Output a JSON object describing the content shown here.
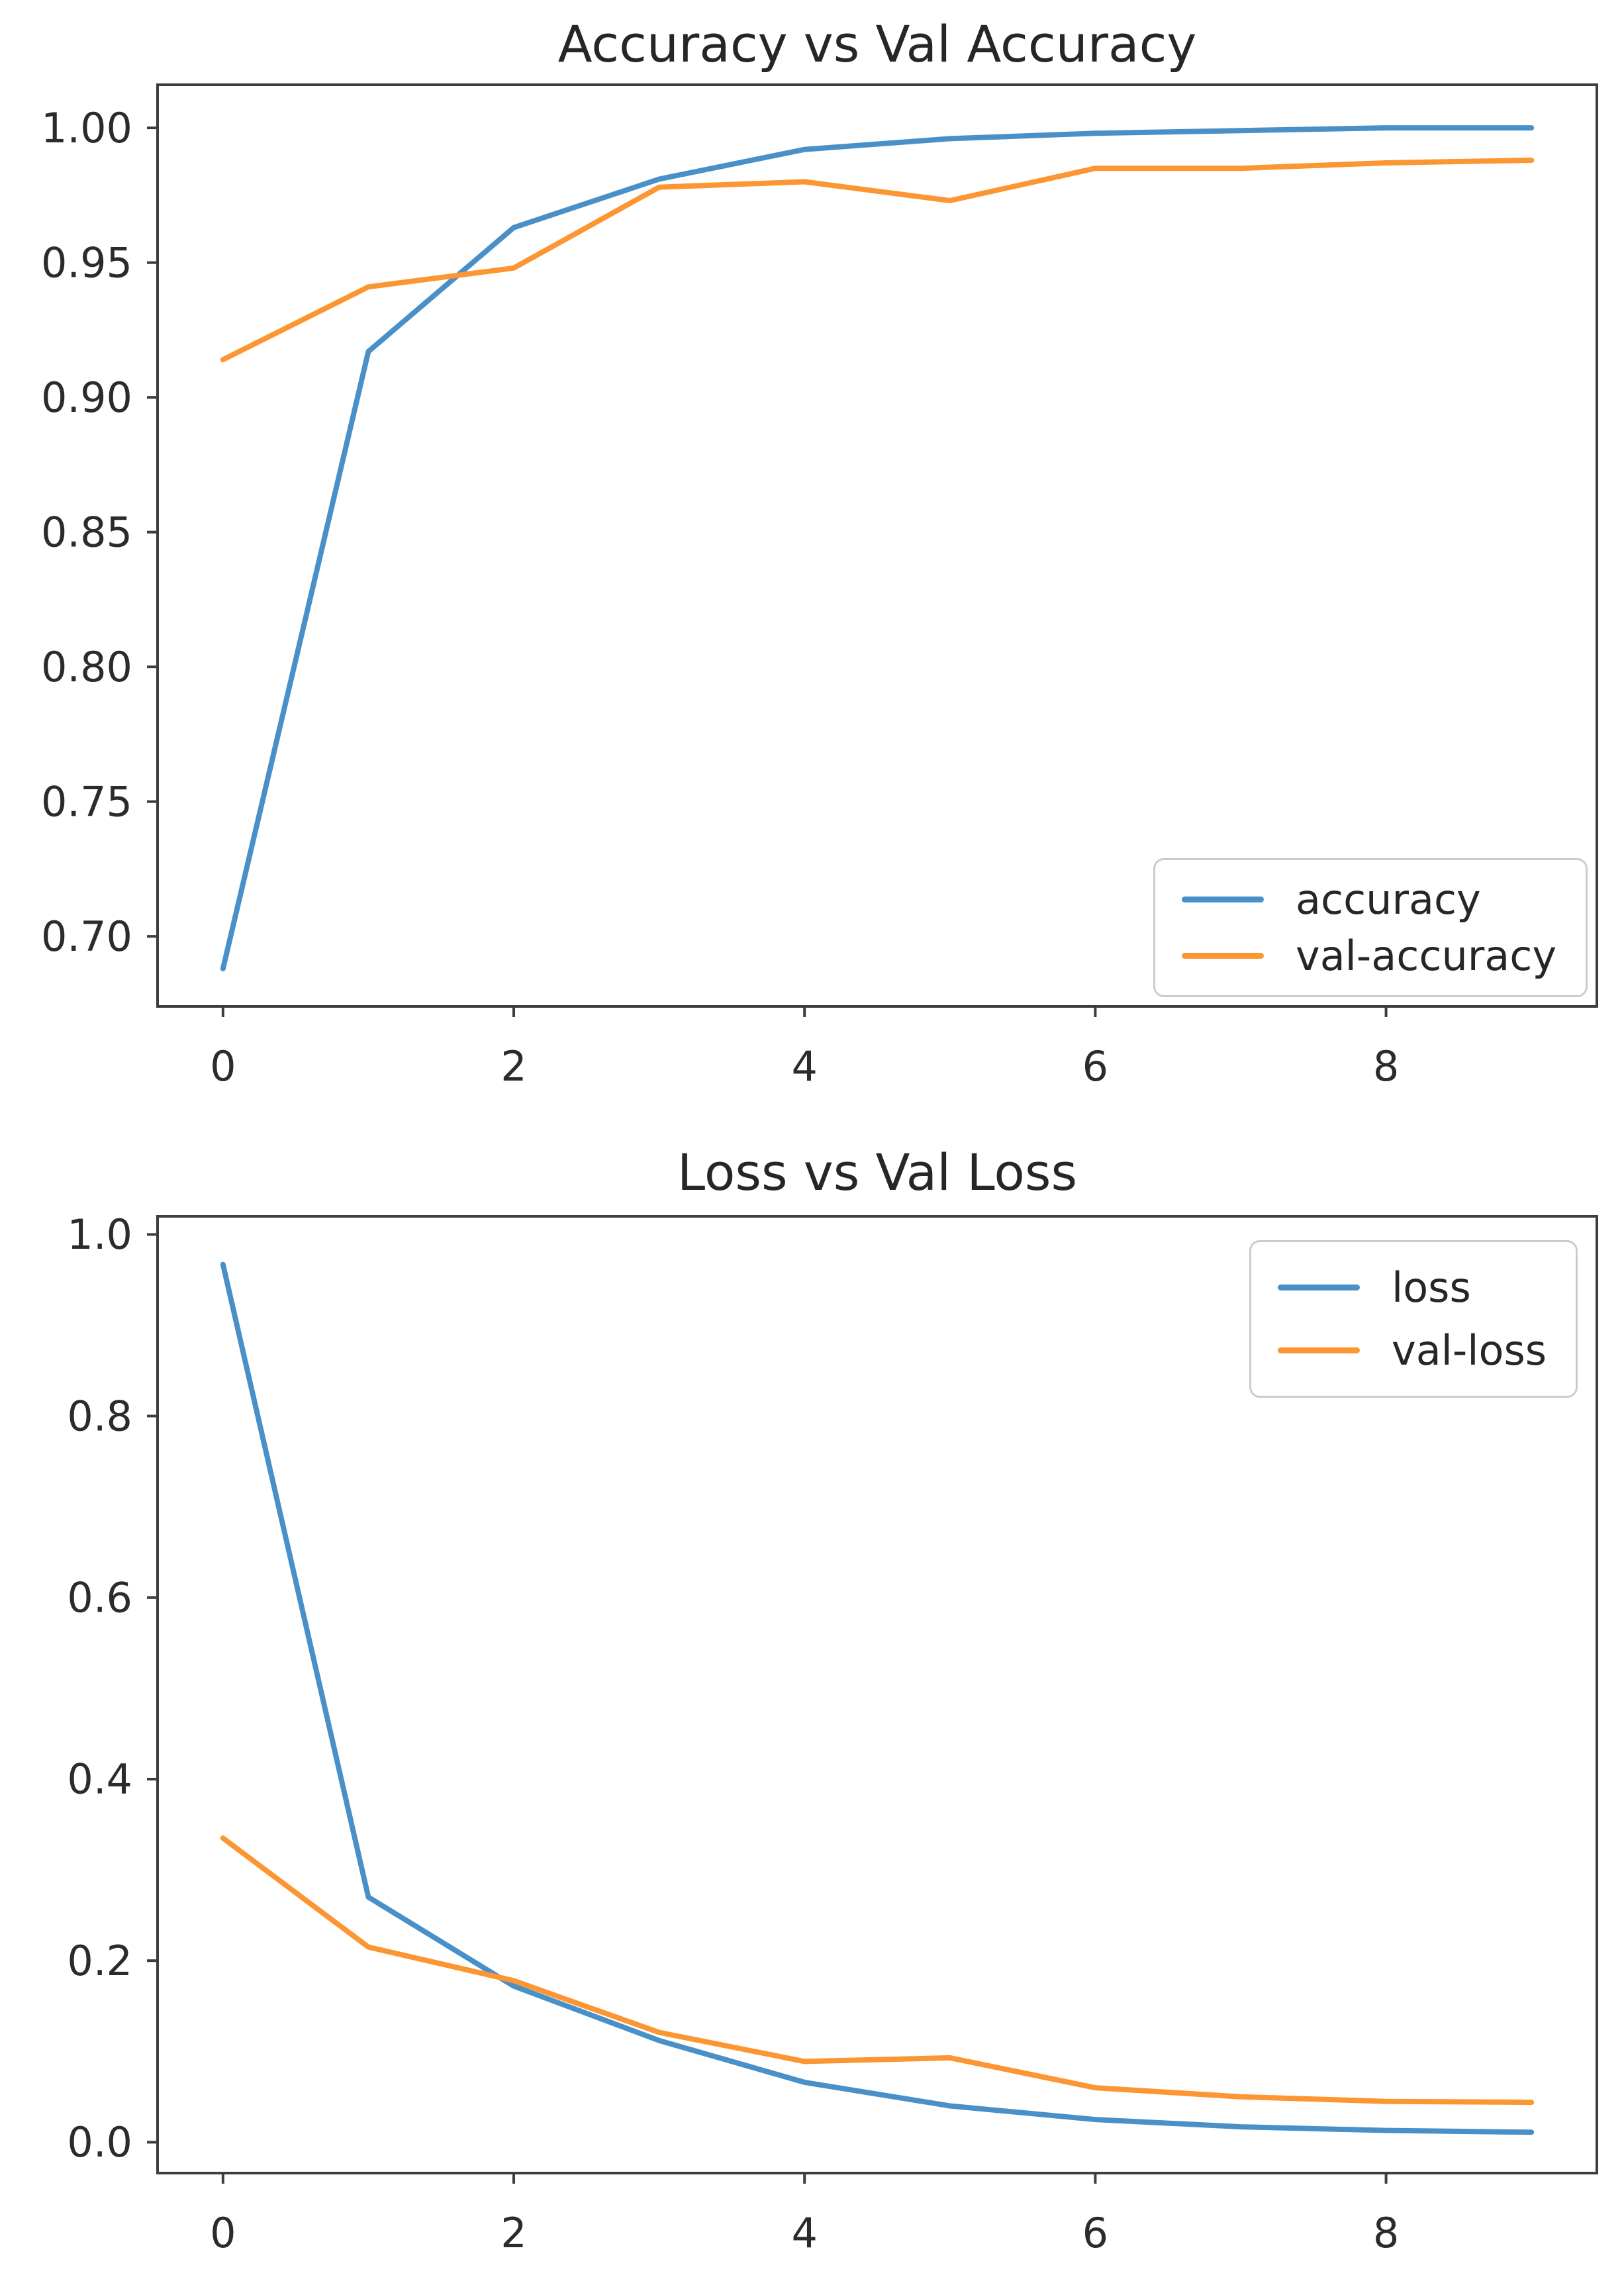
{
  "figure": {
    "background_color": "#ffffff",
    "axis_color": "#3d3d3d",
    "tick_label_color": "#2b2b2b",
    "accent_blue": "#4a90c8",
    "accent_orange": "#fb9632"
  },
  "chart_data": [
    {
      "type": "line",
      "title": "Accuracy vs Val Accuracy",
      "xlabel": "",
      "ylabel": "",
      "x": [
        0,
        1,
        2,
        3,
        4,
        5,
        6,
        7,
        8,
        9
      ],
      "series": [
        {
          "name": "accuracy",
          "color": "#4a90c8",
          "values": [
            0.688,
            0.917,
            0.963,
            0.981,
            0.992,
            0.996,
            0.998,
            0.999,
            1.0,
            1.0
          ]
        },
        {
          "name": "val-accuracy",
          "color": "#fb9632",
          "values": [
            0.914,
            0.941,
            0.948,
            0.978,
            0.98,
            0.973,
            0.985,
            0.985,
            0.987,
            0.988
          ]
        }
      ],
      "xlim": [
        -0.45,
        9.45
      ],
      "ylim": [
        0.674,
        1.016
      ],
      "xticks": {
        "values": [
          0,
          2,
          4,
          6,
          8
        ],
        "labels": [
          "0",
          "2",
          "4",
          "6",
          "8"
        ]
      },
      "yticks": {
        "values": [
          1.0,
          0.95,
          0.9,
          0.85,
          0.8,
          0.75,
          0.7
        ],
        "labels": [
          "1.00",
          "0.95",
          "0.90",
          "0.85",
          "0.80",
          "0.75",
          "0.70"
        ]
      },
      "grid": false,
      "legend_position": "lower right"
    },
    {
      "type": "line",
      "title": "Loss vs Val Loss",
      "xlabel": "",
      "ylabel": "",
      "x": [
        0,
        1,
        2,
        3,
        4,
        5,
        6,
        7,
        8,
        9
      ],
      "series": [
        {
          "name": "loss",
          "color": "#4a90c8",
          "values": [
            0.967,
            0.27,
            0.172,
            0.112,
            0.066,
            0.04,
            0.025,
            0.017,
            0.013,
            0.011
          ]
        },
        {
          "name": "val-loss",
          "color": "#fb9632",
          "values": [
            0.335,
            0.215,
            0.178,
            0.121,
            0.089,
            0.093,
            0.06,
            0.05,
            0.045,
            0.044
          ]
        }
      ],
      "xlim": [
        -0.45,
        9.45
      ],
      "ylim": [
        -0.034,
        1.02
      ],
      "xticks": {
        "values": [
          0,
          2,
          4,
          6,
          8
        ],
        "labels": [
          "0",
          "2",
          "4",
          "6",
          "8"
        ]
      },
      "yticks": {
        "values": [
          1.0,
          0.8,
          0.6,
          0.4,
          0.2,
          0.0
        ],
        "labels": [
          "1.0",
          "0.8",
          "0.6",
          "0.4",
          "0.2",
          "0.0"
        ]
      },
      "grid": false,
      "legend_position": "upper right"
    }
  ]
}
